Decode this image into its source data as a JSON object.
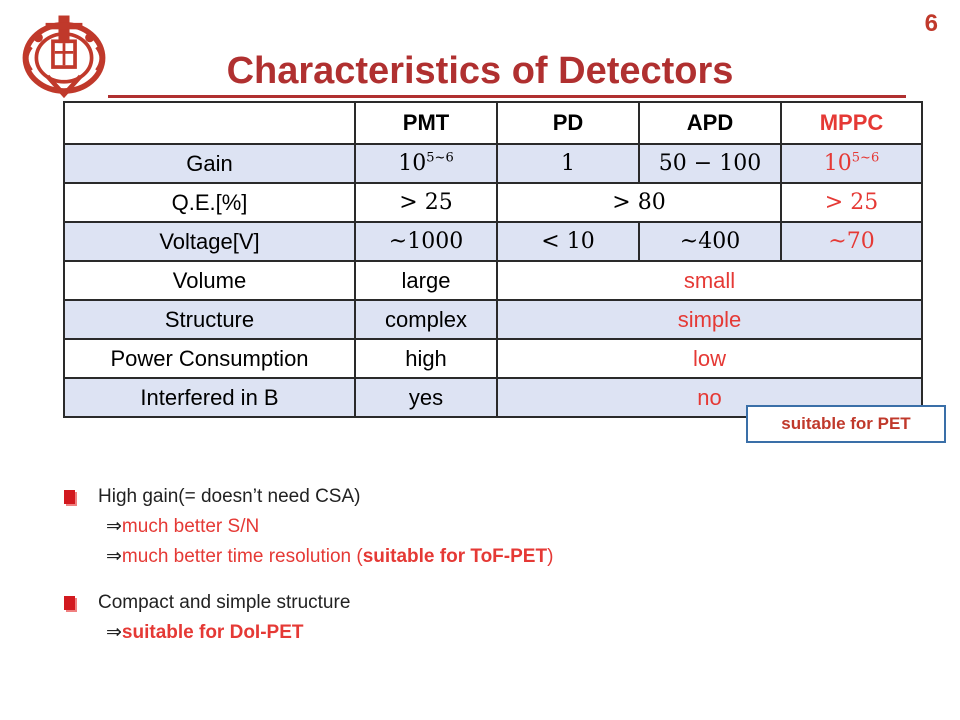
{
  "slide": {
    "number": "6",
    "title": "Characteristics of Detectors"
  },
  "table": {
    "headers": [
      "",
      "PMT",
      "PD",
      "APD",
      "MPPC"
    ],
    "rows": {
      "gain": {
        "label": "Gain",
        "pmt_base": "10",
        "pmt_exp": "5~6",
        "pd": "1",
        "apd": "50 − 100",
        "mppc_base": "10",
        "mppc_exp": "5~6"
      },
      "qe": {
        "label": "Q.E.[%]",
        "pmt": "> 25",
        "pd_apd": "> 80",
        "mppc": "> 25"
      },
      "voltage": {
        "label": "Voltage[V]",
        "pmt": "~1000",
        "pd": "< 10",
        "apd": "~400",
        "mppc": "~70"
      },
      "volume": {
        "label": "Volume",
        "pmt": "large",
        "rest": "small"
      },
      "structure": {
        "label": "Structure",
        "pmt": "complex",
        "rest": "simple"
      },
      "power": {
        "label": "Power Consumption",
        "pmt": "high",
        "rest": "low"
      },
      "interfered": {
        "label": "Interfered in B",
        "pmt": "yes",
        "rest": "no"
      }
    }
  },
  "callout": "suitable for PET",
  "bullets": {
    "b1": {
      "text": "High gain(= doesn’t need CSA)",
      "sub1": "much better S/N",
      "sub2_pre": "much better time resolution (",
      "sub2_bold": "suitable for ToF-PET",
      "sub2_post": ")"
    },
    "b2": {
      "text": "Compact and simple structure",
      "sub1": "suitable for DoI-PET"
    },
    "arrow": "⇒"
  },
  "colors": {
    "title": "#b03030",
    "highlight": "#e53935",
    "row_band": "#dde3f3",
    "callout_border": "#3a6fa8"
  }
}
